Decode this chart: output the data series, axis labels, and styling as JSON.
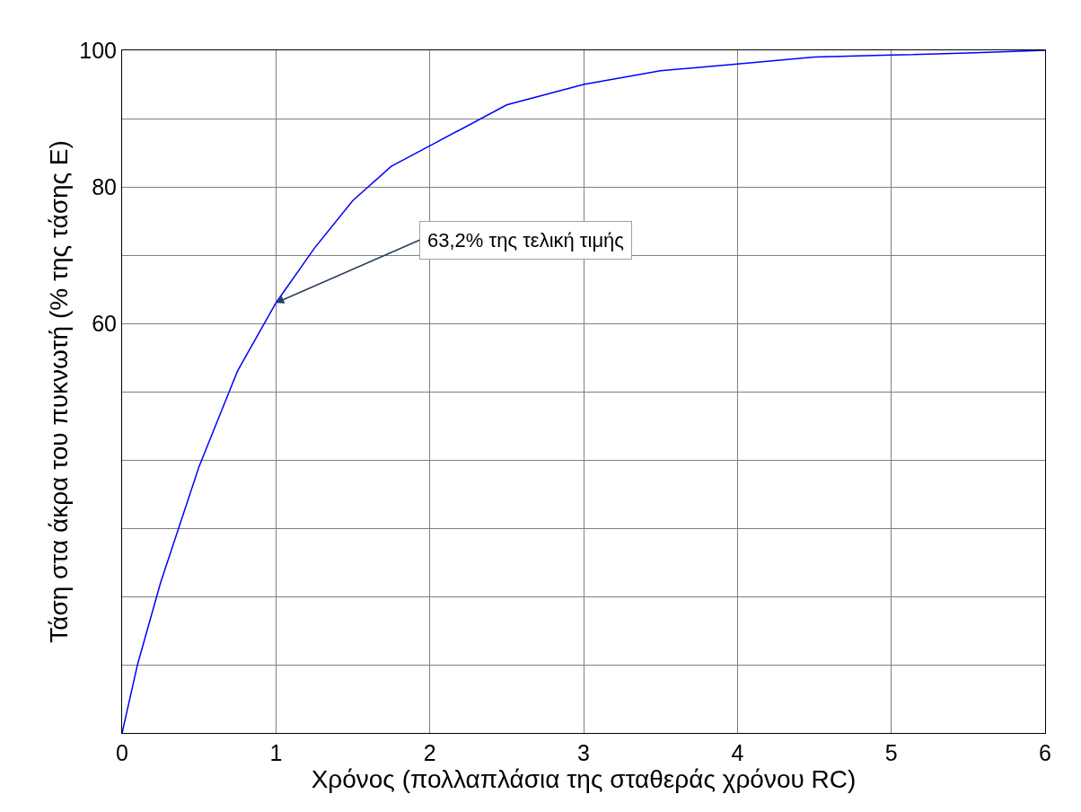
{
  "chart_data": {
    "type": "line",
    "xlabel": "Χρόνος (πολλαπλάσια της σταθεράς χρόνου RC)",
    "ylabel": "Τάση στα άκρα του πυκνωτή (% της τάσης Ε)",
    "x": [
      0,
      0.1,
      0.25,
      0.5,
      0.75,
      1,
      1.25,
      1.5,
      1.75,
      2,
      2.5,
      3,
      3.5,
      4,
      4.5,
      5,
      5.5,
      6
    ],
    "series": [
      {
        "color": "#0000ff",
        "values": [
          0,
          10,
          22,
          39,
          53,
          63,
          71,
          78,
          83,
          86,
          92,
          95,
          97,
          98,
          99,
          99.3,
          99.6,
          100
        ]
      }
    ],
    "xlim": [
      0,
      6
    ],
    "xticks": [
      0,
      1,
      2,
      3,
      4,
      5,
      6
    ],
    "ylim": [
      0,
      100
    ],
    "yticks": [
      {
        "value": 0,
        "label": null
      },
      {
        "value": 10,
        "label": null
      },
      {
        "value": 20,
        "label": null
      },
      {
        "value": 30,
        "label": null
      },
      {
        "value": 40,
        "label": null
      },
      {
        "value": 50,
        "label": null
      },
      60,
      {
        "value": 70,
        "label": null
      },
      80,
      {
        "value": 90,
        "label": null
      },
      100
    ],
    "annotations": [
      {
        "text": "63,2% της τελική τιμής",
        "x": 1,
        "y": 63
      }
    ],
    "grid": true,
    "legend": false,
    "marker": "none",
    "line_style": "solid"
  }
}
